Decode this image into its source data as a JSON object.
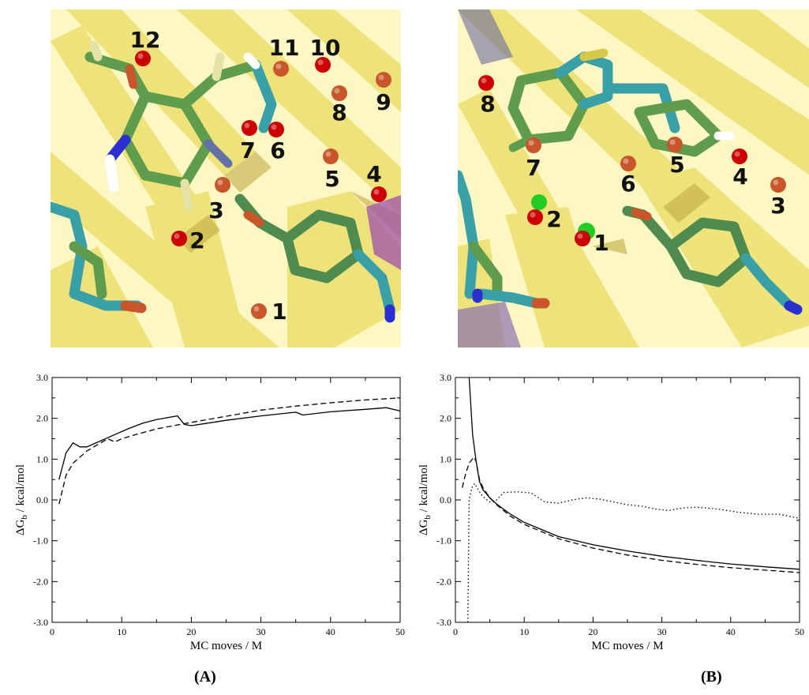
{
  "images": {
    "a": {
      "water_sites": [
        {
          "label": "1",
          "color": "#c8562a"
        },
        {
          "label": "2",
          "color": "#cc0000"
        },
        {
          "label": "3",
          "color": "#c8562a"
        },
        {
          "label": "4",
          "color": "#cc0000"
        },
        {
          "label": "5",
          "color": "#c8562a"
        },
        {
          "label": "6",
          "color": "#cc0000"
        },
        {
          "label": "7",
          "color": "#cc0000"
        },
        {
          "label": "8",
          "color": "#c8562a"
        },
        {
          "label": "9",
          "color": "#c8562a"
        },
        {
          "label": "10",
          "color": "#cc0000"
        },
        {
          "label": "11",
          "color": "#c8562a"
        },
        {
          "label": "12",
          "color": "#cc0000"
        }
      ]
    },
    "b": {
      "water_sites": [
        {
          "label": "1",
          "color": "#cc0000"
        },
        {
          "label": "2",
          "color": "#cc0000"
        },
        {
          "label": "3",
          "color": "#c8562a"
        },
        {
          "label": "4",
          "color": "#cc0000"
        },
        {
          "label": "5",
          "color": "#c8562a"
        },
        {
          "label": "6",
          "color": "#c8562a"
        },
        {
          "label": "7",
          "color": "#c8562a"
        },
        {
          "label": "8",
          "color": "#cc0000"
        }
      ]
    }
  },
  "chart_data": [
    {
      "type": "line",
      "panel_label": "(A)",
      "xlabel": "MC moves / M",
      "ylabel_main": "ΔG",
      "ylabel_sub": "b",
      "ylabel_rest": " / kcal/mol",
      "xlim": [
        0,
        50
      ],
      "ylim": [
        -3.0,
        3.0
      ],
      "xticks": [
        "0",
        "10",
        "20",
        "30",
        "40",
        "50"
      ],
      "yticks": [
        "-3.0",
        "-2.0",
        "-1.0",
        "0.0",
        "1.0",
        "2.0",
        "3.0"
      ],
      "series": [
        {
          "style": "solid",
          "points": [
            [
              1,
              0.5
            ],
            [
              2,
              1.15
            ],
            [
              3,
              1.4
            ],
            [
              4,
              1.3
            ],
            [
              5,
              1.3
            ],
            [
              7,
              1.45
            ],
            [
              9,
              1.6
            ],
            [
              11,
              1.75
            ],
            [
              13,
              1.88
            ],
            [
              15,
              1.97
            ],
            [
              18,
              2.06
            ],
            [
              19,
              1.85
            ],
            [
              20,
              1.82
            ],
            [
              25,
              1.95
            ],
            [
              30,
              2.06
            ],
            [
              35,
              2.15
            ],
            [
              36,
              2.08
            ],
            [
              40,
              2.16
            ],
            [
              45,
              2.22
            ],
            [
              48,
              2.26
            ],
            [
              50,
              2.18
            ]
          ]
        },
        {
          "style": "dashed",
          "points": [
            [
              1,
              -0.1
            ],
            [
              2,
              0.6
            ],
            [
              3,
              0.9
            ],
            [
              5,
              1.2
            ],
            [
              7,
              1.4
            ],
            [
              8,
              1.5
            ],
            [
              9,
              1.42
            ],
            [
              10,
              1.5
            ],
            [
              12,
              1.6
            ],
            [
              15,
              1.74
            ],
            [
              20,
              1.9
            ],
            [
              25,
              2.05
            ],
            [
              30,
              2.2
            ],
            [
              35,
              2.3
            ],
            [
              40,
              2.38
            ],
            [
              45,
              2.45
            ],
            [
              50,
              2.5
            ]
          ]
        }
      ]
    },
    {
      "type": "line",
      "panel_label": "(B)",
      "xlabel": "MC moves / M",
      "ylabel_main": "ΔG",
      "ylabel_sub": "b",
      "ylabel_rest": " / kcal/mol",
      "xlim": [
        0,
        50
      ],
      "ylim": [
        -3.0,
        3.0
      ],
      "xticks": [
        "0",
        "10",
        "20",
        "30",
        "40",
        "50"
      ],
      "yticks": [
        "-3.0",
        "-2.0",
        "-1.0",
        "0.0",
        "1.0",
        "2.0",
        "3.0"
      ],
      "series": [
        {
          "style": "solid",
          "points": [
            [
              2,
              3.0
            ],
            [
              2.5,
              1.6
            ],
            [
              3,
              0.95
            ],
            [
              3.5,
              0.45
            ],
            [
              4,
              0.25
            ],
            [
              5,
              0.05
            ],
            [
              6,
              -0.1
            ],
            [
              8,
              -0.35
            ],
            [
              10,
              -0.55
            ],
            [
              15,
              -0.9
            ],
            [
              20,
              -1.1
            ],
            [
              25,
              -1.25
            ],
            [
              30,
              -1.38
            ],
            [
              35,
              -1.48
            ],
            [
              40,
              -1.57
            ],
            [
              45,
              -1.64
            ],
            [
              50,
              -1.7
            ]
          ]
        },
        {
          "style": "dashed",
          "points": [
            [
              1,
              0.3
            ],
            [
              1.5,
              0.65
            ],
            [
              2,
              0.9
            ],
            [
              2.7,
              1.05
            ],
            [
              3,
              0.95
            ],
            [
              3.5,
              0.5
            ],
            [
              4,
              0.3
            ],
            [
              5,
              0.05
            ],
            [
              6,
              -0.12
            ],
            [
              8,
              -0.4
            ],
            [
              10,
              -0.6
            ],
            [
              15,
              -0.95
            ],
            [
              20,
              -1.18
            ],
            [
              25,
              -1.35
            ],
            [
              30,
              -1.48
            ],
            [
              35,
              -1.58
            ],
            [
              40,
              -1.66
            ],
            [
              45,
              -1.72
            ],
            [
              50,
              -1.78
            ]
          ]
        },
        {
          "style": "dotted",
          "points": [
            [
              1.8,
              -3.0
            ],
            [
              2.0,
              0.0
            ],
            [
              2.4,
              0.3
            ],
            [
              2.8,
              0.4
            ],
            [
              3.3,
              0.25
            ],
            [
              4,
              0.08
            ],
            [
              5,
              -0.05
            ],
            [
              6,
              0.0
            ],
            [
              7,
              0.18
            ],
            [
              9,
              0.2
            ],
            [
              11,
              0.17
            ],
            [
              13,
              -0.05
            ],
            [
              15,
              -0.08
            ],
            [
              17,
              0.0
            ],
            [
              19,
              0.05
            ],
            [
              21,
              0.02
            ],
            [
              23,
              -0.05
            ],
            [
              25,
              -0.12
            ],
            [
              27,
              -0.15
            ],
            [
              29,
              -0.22
            ],
            [
              31,
              -0.26
            ],
            [
              33,
              -0.2
            ],
            [
              35,
              -0.18
            ],
            [
              38,
              -0.22
            ],
            [
              41,
              -0.3
            ],
            [
              44,
              -0.35
            ],
            [
              47,
              -0.35
            ],
            [
              50,
              -0.45
            ]
          ]
        }
      ]
    }
  ]
}
